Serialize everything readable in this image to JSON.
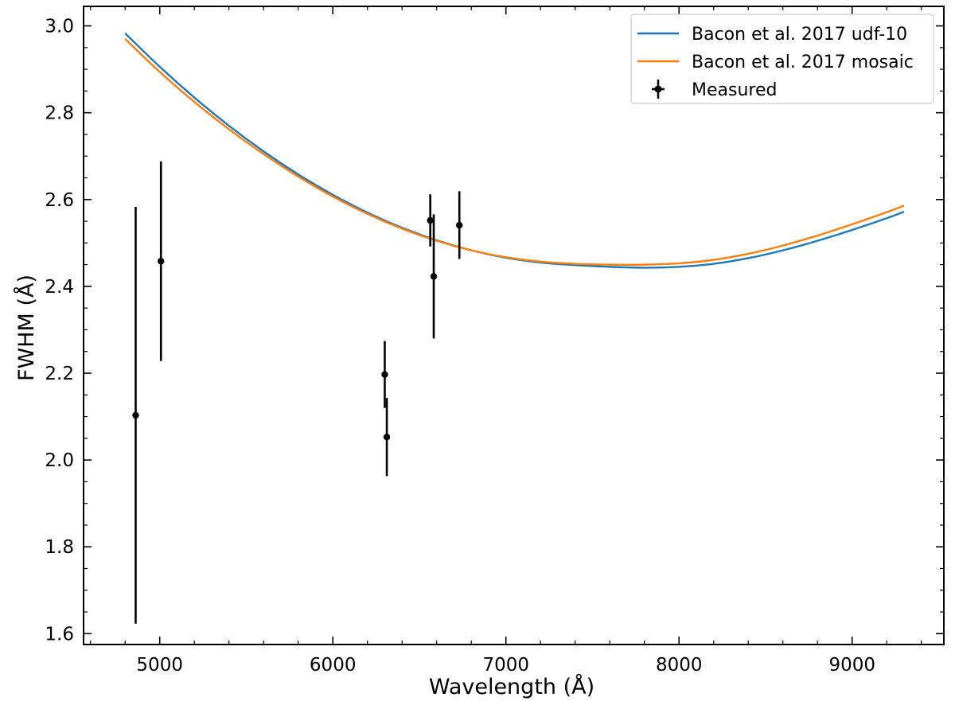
{
  "chart_data": {
    "type": "line",
    "title": "",
    "xlabel": "Wavelength (Å)",
    "ylabel": "FWHM (Å)",
    "xlim": [
      4560,
      9530
    ],
    "ylim": [
      1.575,
      3.045
    ],
    "xticks": [
      5000,
      6000,
      7000,
      8000,
      9000
    ],
    "yticks": [
      1.6,
      1.8,
      2.0,
      2.2,
      2.4,
      2.6,
      2.8,
      3.0
    ],
    "grid": false,
    "legend_position": "top-right",
    "series": [
      {
        "name": "Bacon et al. 2017 udf-10",
        "kind": "line",
        "color": "#1f77b4",
        "x": [
          4800,
          5000,
          5200,
          5400,
          5600,
          5800,
          6000,
          6200,
          6400,
          6600,
          6800,
          7000,
          7200,
          7400,
          7600,
          7800,
          8000,
          8200,
          8400,
          8600,
          8800,
          9000,
          9200,
          9300
        ],
        "y": [
          2.983,
          2.906,
          2.835,
          2.77,
          2.711,
          2.658,
          2.611,
          2.57,
          2.535,
          2.506,
          2.483,
          2.466,
          2.455,
          2.449,
          2.445,
          2.443,
          2.445,
          2.452,
          2.465,
          2.483,
          2.505,
          2.53,
          2.557,
          2.572
        ]
      },
      {
        "name": "Bacon et al. 2017 mosaic",
        "kind": "line",
        "color": "#ff7f0e",
        "x": [
          4800,
          5000,
          5200,
          5400,
          5600,
          5800,
          6000,
          6200,
          6400,
          6600,
          6800,
          7000,
          7200,
          7400,
          7600,
          7800,
          8000,
          8200,
          8400,
          8600,
          8800,
          9000,
          9200,
          9300
        ],
        "y": [
          2.97,
          2.894,
          2.825,
          2.762,
          2.705,
          2.653,
          2.607,
          2.567,
          2.533,
          2.505,
          2.483,
          2.467,
          2.457,
          2.452,
          2.45,
          2.45,
          2.453,
          2.461,
          2.475,
          2.494,
          2.517,
          2.543,
          2.571,
          2.586
        ]
      },
      {
        "name": "Measured",
        "kind": "errorbar",
        "color": "#000000",
        "x": [
          4861,
          5007,
          6300,
          6312,
          6563,
          6583,
          6731
        ],
        "y": [
          2.103,
          2.458,
          2.197,
          2.053,
          2.552,
          2.423,
          2.541
        ],
        "yerr": [
          0.48,
          0.23,
          0.077,
          0.09,
          0.06,
          0.143,
          0.078
        ]
      }
    ]
  }
}
